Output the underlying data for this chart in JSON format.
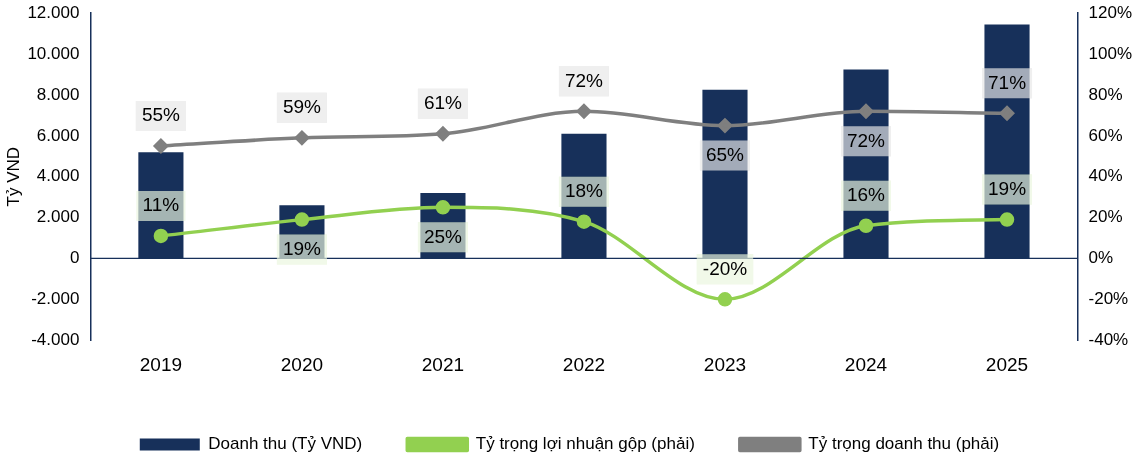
{
  "chart_data": {
    "type": "bar",
    "ylabel": "Tỷ VND",
    "categories": [
      "2019",
      "2020",
      "2021",
      "2022",
      "2023",
      "2024",
      "2025"
    ],
    "series": [
      {
        "name": "Doanh thu (Tỷ VND)",
        "color": "#17305a",
        "values": [
          5200,
          2600,
          3200,
          6100,
          8250,
          9250,
          11450
        ]
      },
      {
        "name": "Tỷ trọng lợi nhuận gộp (phải)",
        "type": "line",
        "axis": "y2",
        "color": "#92d050",
        "marker": "circle",
        "values": [
          11,
          19,
          25,
          18,
          -20,
          16,
          19
        ],
        "value_labels": [
          "11%",
          "19%",
          "25%",
          "18%",
          "-20%",
          "16%",
          "19%"
        ]
      },
      {
        "name": "Tỷ trọng doanh thu (phải)",
        "type": "line",
        "axis": "y2",
        "color": "#7f7f7f",
        "marker": "diamond",
        "values": [
          55,
          59,
          61,
          72,
          65,
          72,
          71
        ],
        "value_labels": [
          "55%",
          "59%",
          "61%",
          "72%",
          "65%",
          "72%",
          "71%"
        ]
      }
    ],
    "ylim": [
      -4000,
      12000
    ],
    "yticks": [
      {
        "value": -4000,
        "label": "-4.000"
      },
      {
        "value": -2000,
        "label": "-2.000"
      },
      {
        "value": 0,
        "label": "0"
      },
      {
        "value": 2000,
        "label": "2.000"
      },
      {
        "value": 4000,
        "label": "4.000"
      },
      {
        "value": 6000,
        "label": "6.000"
      },
      {
        "value": 8000,
        "label": "8.000"
      },
      {
        "value": 10000,
        "label": "10.000"
      },
      {
        "value": 12000,
        "label": "12.000"
      }
    ],
    "y2lim": [
      -40,
      120
    ],
    "y2ticks": [
      {
        "value": -40,
        "label": "-40%"
      },
      {
        "value": -20,
        "label": "-20%"
      },
      {
        "value": 0,
        "label": "0%"
      },
      {
        "value": 20,
        "label": "20%"
      },
      {
        "value": 40,
        "label": "40%"
      },
      {
        "value": 60,
        "label": "60%"
      },
      {
        "value": 80,
        "label": "80%"
      },
      {
        "value": 100,
        "label": "100%"
      },
      {
        "value": 120,
        "label": "120%"
      }
    ],
    "legend": "bottom",
    "grid": false
  }
}
